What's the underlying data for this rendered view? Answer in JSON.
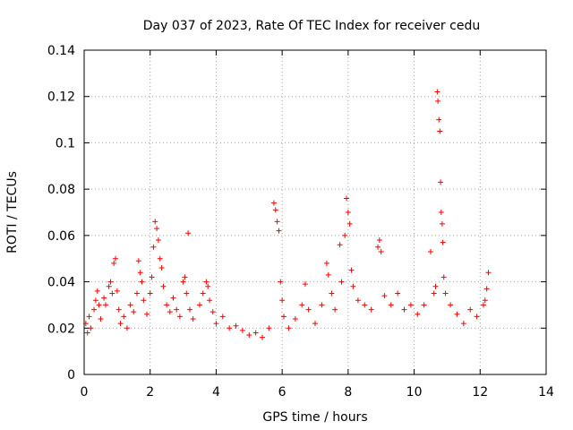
{
  "chart_data": {
    "type": "scatter",
    "title": "Day 037 of 2023, Rate Of TEC Index for receiver cedu",
    "xlabel": "GPS time / hours",
    "ylabel": "ROTI / TECUs",
    "xlim": [
      0,
      14
    ],
    "ylim": [
      0,
      0.14
    ],
    "x_ticks": [
      0,
      2,
      4,
      6,
      8,
      10,
      12,
      14
    ],
    "y_ticks": [
      0,
      0.02,
      0.04,
      0.06,
      0.08,
      0.1,
      0.12,
      0.14
    ],
    "x_tick_labels": [
      "0",
      "2",
      "4",
      "6",
      "8",
      "10",
      "12",
      "14"
    ],
    "y_tick_labels": [
      "0",
      "0.02",
      "0.04",
      "0.06",
      "0.08",
      "0.1",
      "0.12",
      "0.14"
    ],
    "grid": true,
    "marker": "+",
    "color": "#ff0000",
    "series": [
      {
        "name": "ROTI",
        "points": [
          [
            0.05,
            0.022
          ],
          [
            0.1,
            0.018
          ],
          [
            0.15,
            0.025
          ],
          [
            0.2,
            0.02
          ],
          [
            0.3,
            0.028
          ],
          [
            0.35,
            0.032
          ],
          [
            0.4,
            0.036
          ],
          [
            0.45,
            0.03
          ],
          [
            0.5,
            0.024
          ],
          [
            0.6,
            0.033
          ],
          [
            0.65,
            0.03
          ],
          [
            0.75,
            0.038
          ],
          [
            0.8,
            0.04
          ],
          [
            0.85,
            0.035
          ],
          [
            0.9,
            0.048
          ],
          [
            0.95,
            0.05
          ],
          [
            1.0,
            0.036
          ],
          [
            1.05,
            0.028
          ],
          [
            1.1,
            0.022
          ],
          [
            1.2,
            0.025
          ],
          [
            1.3,
            0.02
          ],
          [
            1.4,
            0.03
          ],
          [
            1.5,
            0.027
          ],
          [
            1.6,
            0.035
          ],
          [
            1.65,
            0.049
          ],
          [
            1.7,
            0.044
          ],
          [
            1.75,
            0.04
          ],
          [
            1.8,
            0.032
          ],
          [
            1.9,
            0.026
          ],
          [
            2.0,
            0.035
          ],
          [
            2.05,
            0.042
          ],
          [
            2.1,
            0.055
          ],
          [
            2.15,
            0.066
          ],
          [
            2.2,
            0.063
          ],
          [
            2.25,
            0.058
          ],
          [
            2.3,
            0.05
          ],
          [
            2.35,
            0.046
          ],
          [
            2.4,
            0.038
          ],
          [
            2.5,
            0.03
          ],
          [
            2.6,
            0.027
          ],
          [
            2.7,
            0.033
          ],
          [
            2.8,
            0.028
          ],
          [
            2.9,
            0.025
          ],
          [
            3.0,
            0.04
          ],
          [
            3.05,
            0.042
          ],
          [
            3.1,
            0.035
          ],
          [
            3.15,
            0.061
          ],
          [
            3.2,
            0.028
          ],
          [
            3.3,
            0.024
          ],
          [
            3.5,
            0.03
          ],
          [
            3.6,
            0.035
          ],
          [
            3.7,
            0.04
          ],
          [
            3.75,
            0.038
          ],
          [
            3.8,
            0.032
          ],
          [
            3.9,
            0.027
          ],
          [
            4.0,
            0.022
          ],
          [
            4.2,
            0.025
          ],
          [
            4.4,
            0.02
          ],
          [
            4.6,
            0.021
          ],
          [
            4.8,
            0.019
          ],
          [
            5.0,
            0.017
          ],
          [
            5.2,
            0.018
          ],
          [
            5.4,
            0.016
          ],
          [
            5.6,
            0.02
          ],
          [
            5.75,
            0.074
          ],
          [
            5.8,
            0.071
          ],
          [
            5.85,
            0.066
          ],
          [
            5.9,
            0.062
          ],
          [
            5.95,
            0.04
          ],
          [
            6.0,
            0.032
          ],
          [
            6.05,
            0.025
          ],
          [
            6.2,
            0.02
          ],
          [
            6.4,
            0.024
          ],
          [
            6.6,
            0.03
          ],
          [
            6.7,
            0.039
          ],
          [
            6.8,
            0.028
          ],
          [
            7.0,
            0.022
          ],
          [
            7.2,
            0.03
          ],
          [
            7.35,
            0.048
          ],
          [
            7.4,
            0.043
          ],
          [
            7.5,
            0.035
          ],
          [
            7.6,
            0.028
          ],
          [
            7.75,
            0.056
          ],
          [
            7.8,
            0.04
          ],
          [
            7.9,
            0.06
          ],
          [
            7.95,
            0.076
          ],
          [
            8.0,
            0.07
          ],
          [
            8.05,
            0.065
          ],
          [
            8.1,
            0.045
          ],
          [
            8.15,
            0.038
          ],
          [
            8.3,
            0.032
          ],
          [
            8.5,
            0.03
          ],
          [
            8.7,
            0.028
          ],
          [
            8.9,
            0.055
          ],
          [
            8.95,
            0.058
          ],
          [
            9.0,
            0.053
          ],
          [
            9.1,
            0.034
          ],
          [
            9.3,
            0.03
          ],
          [
            9.5,
            0.035
          ],
          [
            9.7,
            0.028
          ],
          [
            9.9,
            0.03
          ],
          [
            10.1,
            0.026
          ],
          [
            10.3,
            0.03
          ],
          [
            10.5,
            0.053
          ],
          [
            10.6,
            0.035
          ],
          [
            10.65,
            0.038
          ],
          [
            10.7,
            0.122
          ],
          [
            10.72,
            0.118
          ],
          [
            10.75,
            0.11
          ],
          [
            10.78,
            0.105
          ],
          [
            10.8,
            0.083
          ],
          [
            10.82,
            0.07
          ],
          [
            10.85,
            0.065
          ],
          [
            10.87,
            0.057
          ],
          [
            10.9,
            0.042
          ],
          [
            10.95,
            0.035
          ],
          [
            11.1,
            0.03
          ],
          [
            11.3,
            0.026
          ],
          [
            11.5,
            0.022
          ],
          [
            11.7,
            0.028
          ],
          [
            11.9,
            0.025
          ],
          [
            12.1,
            0.03
          ],
          [
            12.15,
            0.032
          ],
          [
            12.2,
            0.037
          ],
          [
            12.25,
            0.044
          ]
        ]
      }
    ]
  }
}
